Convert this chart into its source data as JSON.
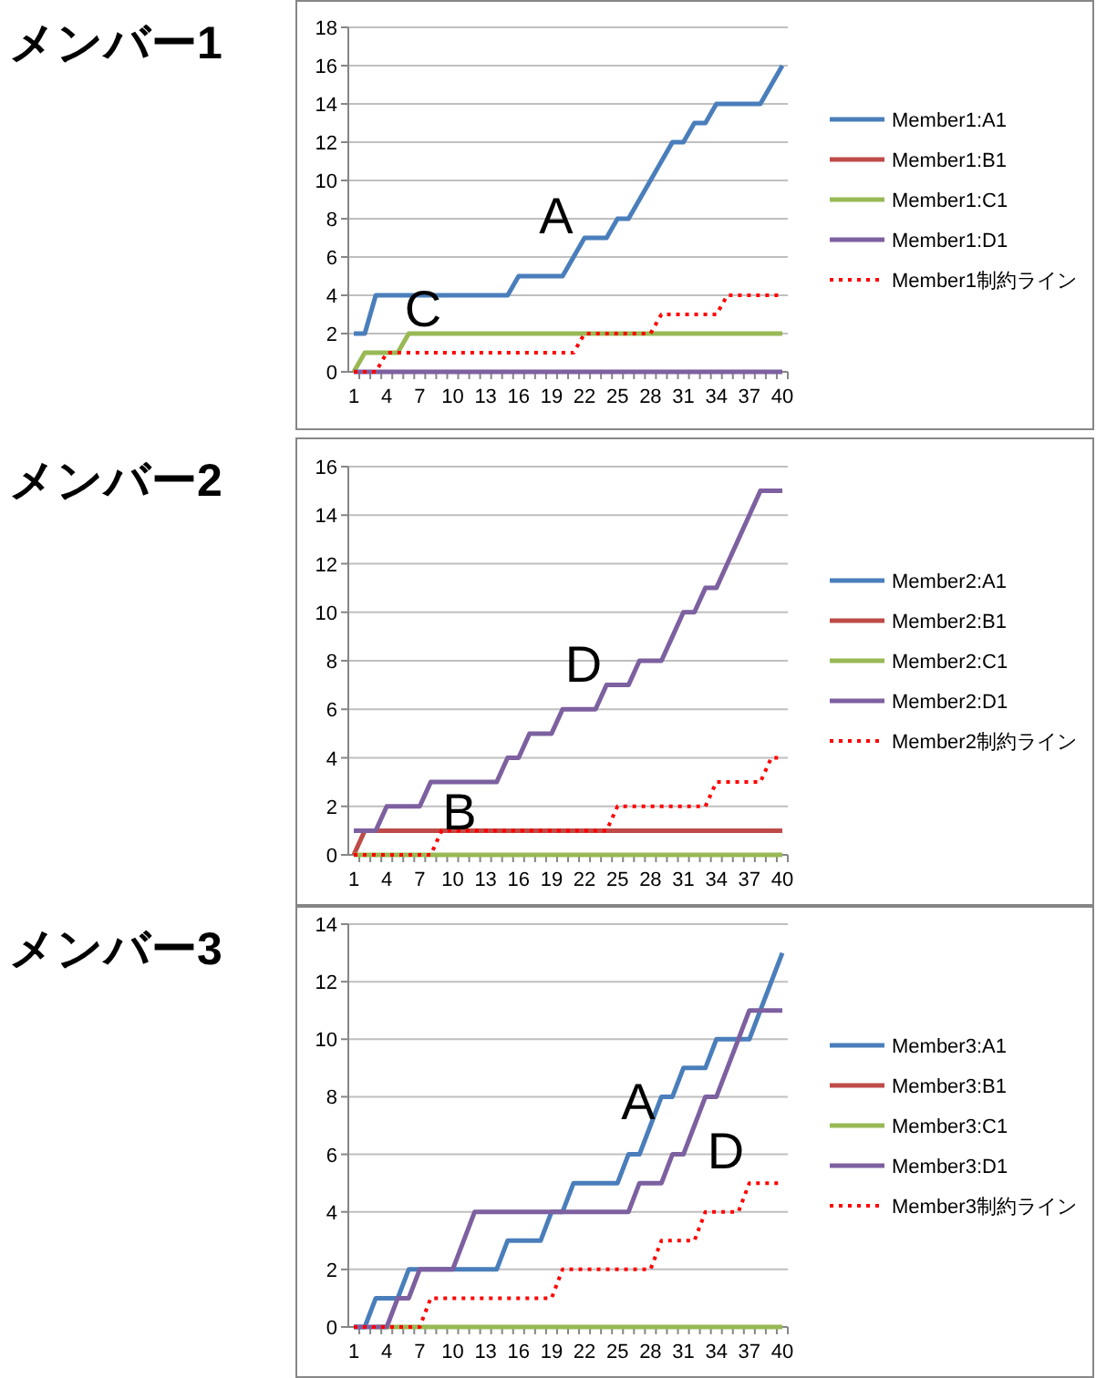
{
  "chart_data": [
    {
      "type": "line",
      "title": "メンバー1",
      "categories": [
        "1",
        null,
        null,
        "4",
        null,
        null,
        "7",
        null,
        null,
        "10",
        null,
        null,
        "13",
        null,
        null,
        "16",
        null,
        null,
        "19",
        null,
        null,
        "22",
        null,
        null,
        "25",
        null,
        null,
        "28",
        null,
        null,
        "31",
        null,
        null,
        "34",
        null,
        null,
        "37",
        null,
        null,
        "40"
      ],
      "ylim": [
        0,
        18
      ],
      "yticks": [
        0,
        2,
        4,
        6,
        8,
        10,
        12,
        14,
        16,
        18
      ],
      "grid": "y",
      "legend": "right",
      "marker": "none",
      "annotations": [
        "A",
        "C"
      ],
      "series": [
        {
          "name": "Member1:A1",
          "color": "#4a7ebb",
          "line_style": "solid",
          "values": [
            2,
            2,
            4,
            4,
            4,
            4,
            4,
            4,
            4,
            4,
            4,
            4,
            4,
            4,
            4,
            5,
            5,
            5,
            5,
            5,
            6,
            7,
            7,
            7,
            8,
            8,
            9,
            10,
            11,
            12,
            12,
            13,
            13,
            14,
            14,
            14,
            14,
            14,
            15,
            16
          ]
        },
        {
          "name": "Member1:B1",
          "color": "#be4b48",
          "line_style": "solid",
          "values": [
            null,
            null,
            null,
            null,
            null,
            null,
            null,
            null,
            null,
            null,
            null,
            null,
            null,
            null,
            null,
            null,
            null,
            null,
            null,
            null,
            null,
            null,
            null,
            null,
            null,
            null,
            null,
            null,
            null,
            null,
            null,
            null,
            null,
            null,
            null,
            null,
            null,
            null,
            null,
            null
          ]
        },
        {
          "name": "Member1:C1",
          "color": "#98b954",
          "line_style": "solid",
          "values": [
            0,
            1,
            1,
            1,
            1,
            2,
            2,
            2,
            2,
            2,
            2,
            2,
            2,
            2,
            2,
            2,
            2,
            2,
            2,
            2,
            2,
            2,
            2,
            2,
            2,
            2,
            2,
            2,
            2,
            2,
            2,
            2,
            2,
            2,
            2,
            2,
            2,
            2,
            2,
            2
          ]
        },
        {
          "name": "Member1:D1",
          "color": "#7d60a0",
          "line_style": "solid",
          "values": [
            0,
            0,
            0,
            0,
            0,
            0,
            0,
            0,
            0,
            0,
            0,
            0,
            0,
            0,
            0,
            0,
            0,
            0,
            0,
            0,
            0,
            0,
            0,
            0,
            0,
            0,
            0,
            0,
            0,
            0,
            0,
            0,
            0,
            0,
            0,
            0,
            0,
            0,
            0,
            0
          ]
        },
        {
          "name": "Member1制約ライン",
          "color": "#ff0000",
          "line_style": "dotted",
          "values": [
            0,
            0,
            0,
            1,
            1,
            1,
            1,
            1,
            1,
            1,
            1,
            1,
            1,
            1,
            1,
            1,
            1,
            1,
            1,
            1,
            1,
            2,
            2,
            2,
            2,
            2,
            2,
            2,
            3,
            3,
            3,
            3,
            3,
            3,
            4,
            4,
            4,
            4,
            4,
            4
          ]
        }
      ]
    },
    {
      "type": "line",
      "title": "メンバー2",
      "categories": [
        "1",
        null,
        null,
        "4",
        null,
        null,
        "7",
        null,
        null,
        "10",
        null,
        null,
        "13",
        null,
        null,
        "16",
        null,
        null,
        "19",
        null,
        null,
        "22",
        null,
        null,
        "25",
        null,
        null,
        "28",
        null,
        null,
        "31",
        null,
        null,
        "34",
        null,
        null,
        "37",
        null,
        null,
        "40"
      ],
      "ylim": [
        0,
        16
      ],
      "yticks": [
        0,
        2,
        4,
        6,
        8,
        10,
        12,
        14,
        16
      ],
      "grid": "y",
      "legend": "right",
      "marker": "none",
      "annotations": [
        "D",
        "B"
      ],
      "series": [
        {
          "name": "Member2:A1",
          "color": "#4a7ebb",
          "line_style": "solid",
          "values": [
            null,
            null,
            null,
            null,
            null,
            null,
            null,
            null,
            null,
            null,
            null,
            null,
            null,
            null,
            null,
            null,
            null,
            null,
            null,
            null,
            null,
            null,
            null,
            null,
            null,
            null,
            null,
            null,
            null,
            null,
            null,
            null,
            null,
            null,
            null,
            null,
            null,
            null,
            null,
            null
          ]
        },
        {
          "name": "Member2:B1",
          "color": "#be4b48",
          "line_style": "solid",
          "values": [
            0,
            1,
            1,
            1,
            1,
            1,
            1,
            1,
            1,
            1,
            1,
            1,
            1,
            1,
            1,
            1,
            1,
            1,
            1,
            1,
            1,
            1,
            1,
            1,
            1,
            1,
            1,
            1,
            1,
            1,
            1,
            1,
            1,
            1,
            1,
            1,
            1,
            1,
            1,
            1
          ]
        },
        {
          "name": "Member2:C1",
          "color": "#98b954",
          "line_style": "solid",
          "values": [
            0,
            0,
            0,
            0,
            0,
            0,
            0,
            0,
            0,
            0,
            0,
            0,
            0,
            0,
            0,
            0,
            0,
            0,
            0,
            0,
            0,
            0,
            0,
            0,
            0,
            0,
            0,
            0,
            0,
            0,
            0,
            0,
            0,
            0,
            0,
            0,
            0,
            0,
            0,
            0
          ]
        },
        {
          "name": "Member2:D1",
          "color": "#7d60a0",
          "line_style": "solid",
          "values": [
            1,
            1,
            1,
            2,
            2,
            2,
            2,
            3,
            3,
            3,
            3,
            3,
            3,
            3,
            4,
            4,
            5,
            5,
            5,
            6,
            6,
            6,
            6,
            7,
            7,
            7,
            8,
            8,
            8,
            9,
            10,
            10,
            11,
            11,
            12,
            13,
            14,
            15,
            15,
            15
          ]
        },
        {
          "name": "Member2制約ライン",
          "color": "#ff0000",
          "line_style": "dotted",
          "values": [
            0,
            0,
            0,
            0,
            0,
            0,
            0,
            0,
            1,
            1,
            1,
            1,
            1,
            1,
            1,
            1,
            1,
            1,
            1,
            1,
            1,
            1,
            1,
            1,
            2,
            2,
            2,
            2,
            2,
            2,
            2,
            2,
            2,
            3,
            3,
            3,
            3,
            3,
            4,
            4
          ]
        }
      ]
    },
    {
      "type": "line",
      "title": "メンバー3",
      "categories": [
        "1",
        null,
        null,
        "4",
        null,
        null,
        "7",
        null,
        null,
        "10",
        null,
        null,
        "13",
        null,
        null,
        "16",
        null,
        null,
        "19",
        null,
        null,
        "22",
        null,
        null,
        "25",
        null,
        null,
        "28",
        null,
        null,
        "31",
        null,
        null,
        "34",
        null,
        null,
        "37",
        null,
        null,
        "40"
      ],
      "ylim": [
        0,
        14
      ],
      "yticks": [
        0,
        2,
        4,
        6,
        8,
        10,
        12,
        14
      ],
      "grid": "y",
      "legend": "right",
      "marker": "none",
      "annotations": [
        "A",
        "D"
      ],
      "series": [
        {
          "name": "Member3:A1",
          "color": "#4a7ebb",
          "line_style": "solid",
          "values": [
            0,
            0,
            1,
            1,
            1,
            2,
            2,
            2,
            2,
            2,
            2,
            2,
            2,
            2,
            3,
            3,
            3,
            3,
            4,
            4,
            5,
            5,
            5,
            5,
            5,
            6,
            6,
            7,
            8,
            8,
            9,
            9,
            9,
            10,
            10,
            10,
            10,
            11,
            12,
            13
          ]
        },
        {
          "name": "Member3:B1",
          "color": "#be4b48",
          "line_style": "solid",
          "values": [
            null,
            null,
            null,
            null,
            null,
            null,
            null,
            null,
            null,
            null,
            null,
            null,
            null,
            null,
            null,
            null,
            null,
            null,
            null,
            null,
            null,
            null,
            null,
            null,
            null,
            null,
            null,
            null,
            null,
            null,
            null,
            null,
            null,
            null,
            null,
            null,
            null,
            null,
            null,
            null
          ]
        },
        {
          "name": "Member3:C1",
          "color": "#98b954",
          "line_style": "solid",
          "values": [
            null,
            null,
            0,
            0,
            0,
            0,
            0,
            0,
            0,
            0,
            0,
            0,
            0,
            0,
            0,
            0,
            0,
            0,
            0,
            0,
            0,
            0,
            0,
            0,
            0,
            0,
            0,
            0,
            0,
            0,
            0,
            0,
            0,
            0,
            0,
            0,
            0,
            0,
            0,
            0
          ]
        },
        {
          "name": "Member3:D1",
          "color": "#7d60a0",
          "line_style": "solid",
          "values": [
            0,
            0,
            0,
            0,
            1,
            1,
            2,
            2,
            2,
            2,
            3,
            4,
            4,
            4,
            4,
            4,
            4,
            4,
            4,
            4,
            4,
            4,
            4,
            4,
            4,
            4,
            5,
            5,
            5,
            6,
            6,
            7,
            8,
            8,
            9,
            10,
            11,
            11,
            11,
            11
          ]
        },
        {
          "name": "Member3制約ライン",
          "color": "#ff0000",
          "line_style": "dotted",
          "values": [
            0,
            0,
            0,
            0,
            0,
            0,
            0,
            1,
            1,
            1,
            1,
            1,
            1,
            1,
            1,
            1,
            1,
            1,
            1,
            2,
            2,
            2,
            2,
            2,
            2,
            2,
            2,
            2,
            3,
            3,
            3,
            3,
            4,
            4,
            4,
            4,
            5,
            5,
            5,
            5
          ]
        }
      ]
    }
  ]
}
